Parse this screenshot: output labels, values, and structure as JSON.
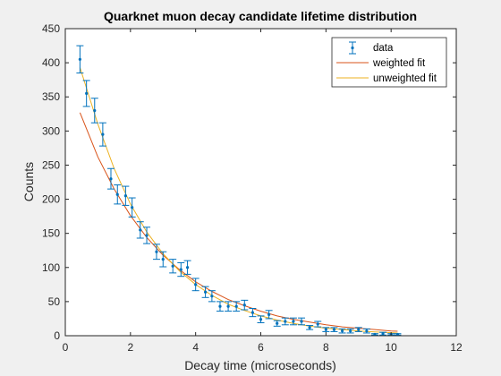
{
  "chart_data": {
    "type": "scatter",
    "title": "Quarknet muon decay candidate lifetime distribution",
    "xlabel": "Decay time (microseconds)",
    "ylabel": "Counts",
    "xlim": [
      0,
      12
    ],
    "ylim": [
      0,
      450
    ],
    "xticks": [
      0,
      2,
      4,
      6,
      8,
      10,
      12
    ],
    "yticks": [
      0,
      50,
      100,
      150,
      200,
      250,
      300,
      350,
      400,
      450
    ],
    "grid": false,
    "legend_position": "top-right",
    "colors": {
      "data": "#0072BD",
      "weighted_fit": "#D95319",
      "unweighted_fit": "#EDB120",
      "axes": "#262626",
      "background": "#f0f0f0",
      "plot_area": "#ffffff"
    },
    "series": [
      {
        "name": "data",
        "kind": "errorbar",
        "x": [
          0.45,
          0.65,
          0.9,
          1.15,
          1.4,
          1.6,
          1.85,
          2.05,
          2.3,
          2.5,
          2.8,
          3.0,
          3.3,
          3.55,
          3.75,
          4.0,
          4.3,
          4.5,
          4.75,
          5.0,
          5.25,
          5.5,
          5.75,
          6.0,
          6.25,
          6.5,
          6.75,
          7.0,
          7.25,
          7.5,
          7.75,
          8.0,
          8.25,
          8.5,
          8.75,
          9.0,
          9.25,
          9.5,
          9.75,
          10.0,
          10.2
        ],
        "y": [
          405,
          355,
          330,
          295,
          230,
          207,
          205,
          188,
          155,
          147,
          123,
          112,
          102,
          97,
          100,
          75,
          64,
          58,
          43,
          43,
          43,
          45,
          34,
          24,
          31,
          18,
          21,
          21,
          21,
          12,
          17,
          9,
          9,
          7,
          7,
          9,
          7,
          2,
          3,
          2,
          2
        ],
        "err": [
          20,
          19,
          18,
          17,
          15,
          14,
          14,
          14,
          12,
          12,
          11,
          11,
          10,
          10,
          10,
          9,
          8,
          8,
          7,
          7,
          7,
          7,
          6,
          5,
          6,
          4,
          5,
          5,
          5,
          3,
          4,
          3,
          3,
          3,
          3,
          3,
          3,
          1,
          2,
          1,
          1
        ]
      },
      {
        "name": "weighted fit",
        "kind": "line",
        "x": [
          0.45,
          1,
          1.5,
          2,
          2.5,
          3,
          3.5,
          4,
          4.5,
          5,
          5.5,
          6,
          6.5,
          7,
          7.5,
          8,
          8.5,
          9,
          9.5,
          10,
          10.2
        ],
        "y": [
          327,
          262,
          215,
          176,
          144,
          118,
          97,
          79,
          65,
          53,
          44,
          36,
          29,
          24,
          20,
          16,
          13,
          11,
          9,
          7,
          6.5
        ]
      },
      {
        "name": "unweighted fit",
        "kind": "line",
        "x": [
          0.45,
          1,
          1.5,
          2,
          2.5,
          3,
          3.5,
          4,
          4.5,
          5,
          5.5,
          6,
          6.5,
          7,
          7.5,
          8,
          8.5,
          9,
          9.5,
          10,
          10.2
        ],
        "y": [
          393,
          310,
          245,
          193,
          152,
          120,
          95,
          75,
          59,
          46,
          37,
          29,
          23,
          18,
          14,
          11,
          9,
          7,
          5.5,
          4.4,
          4
        ]
      }
    ]
  }
}
